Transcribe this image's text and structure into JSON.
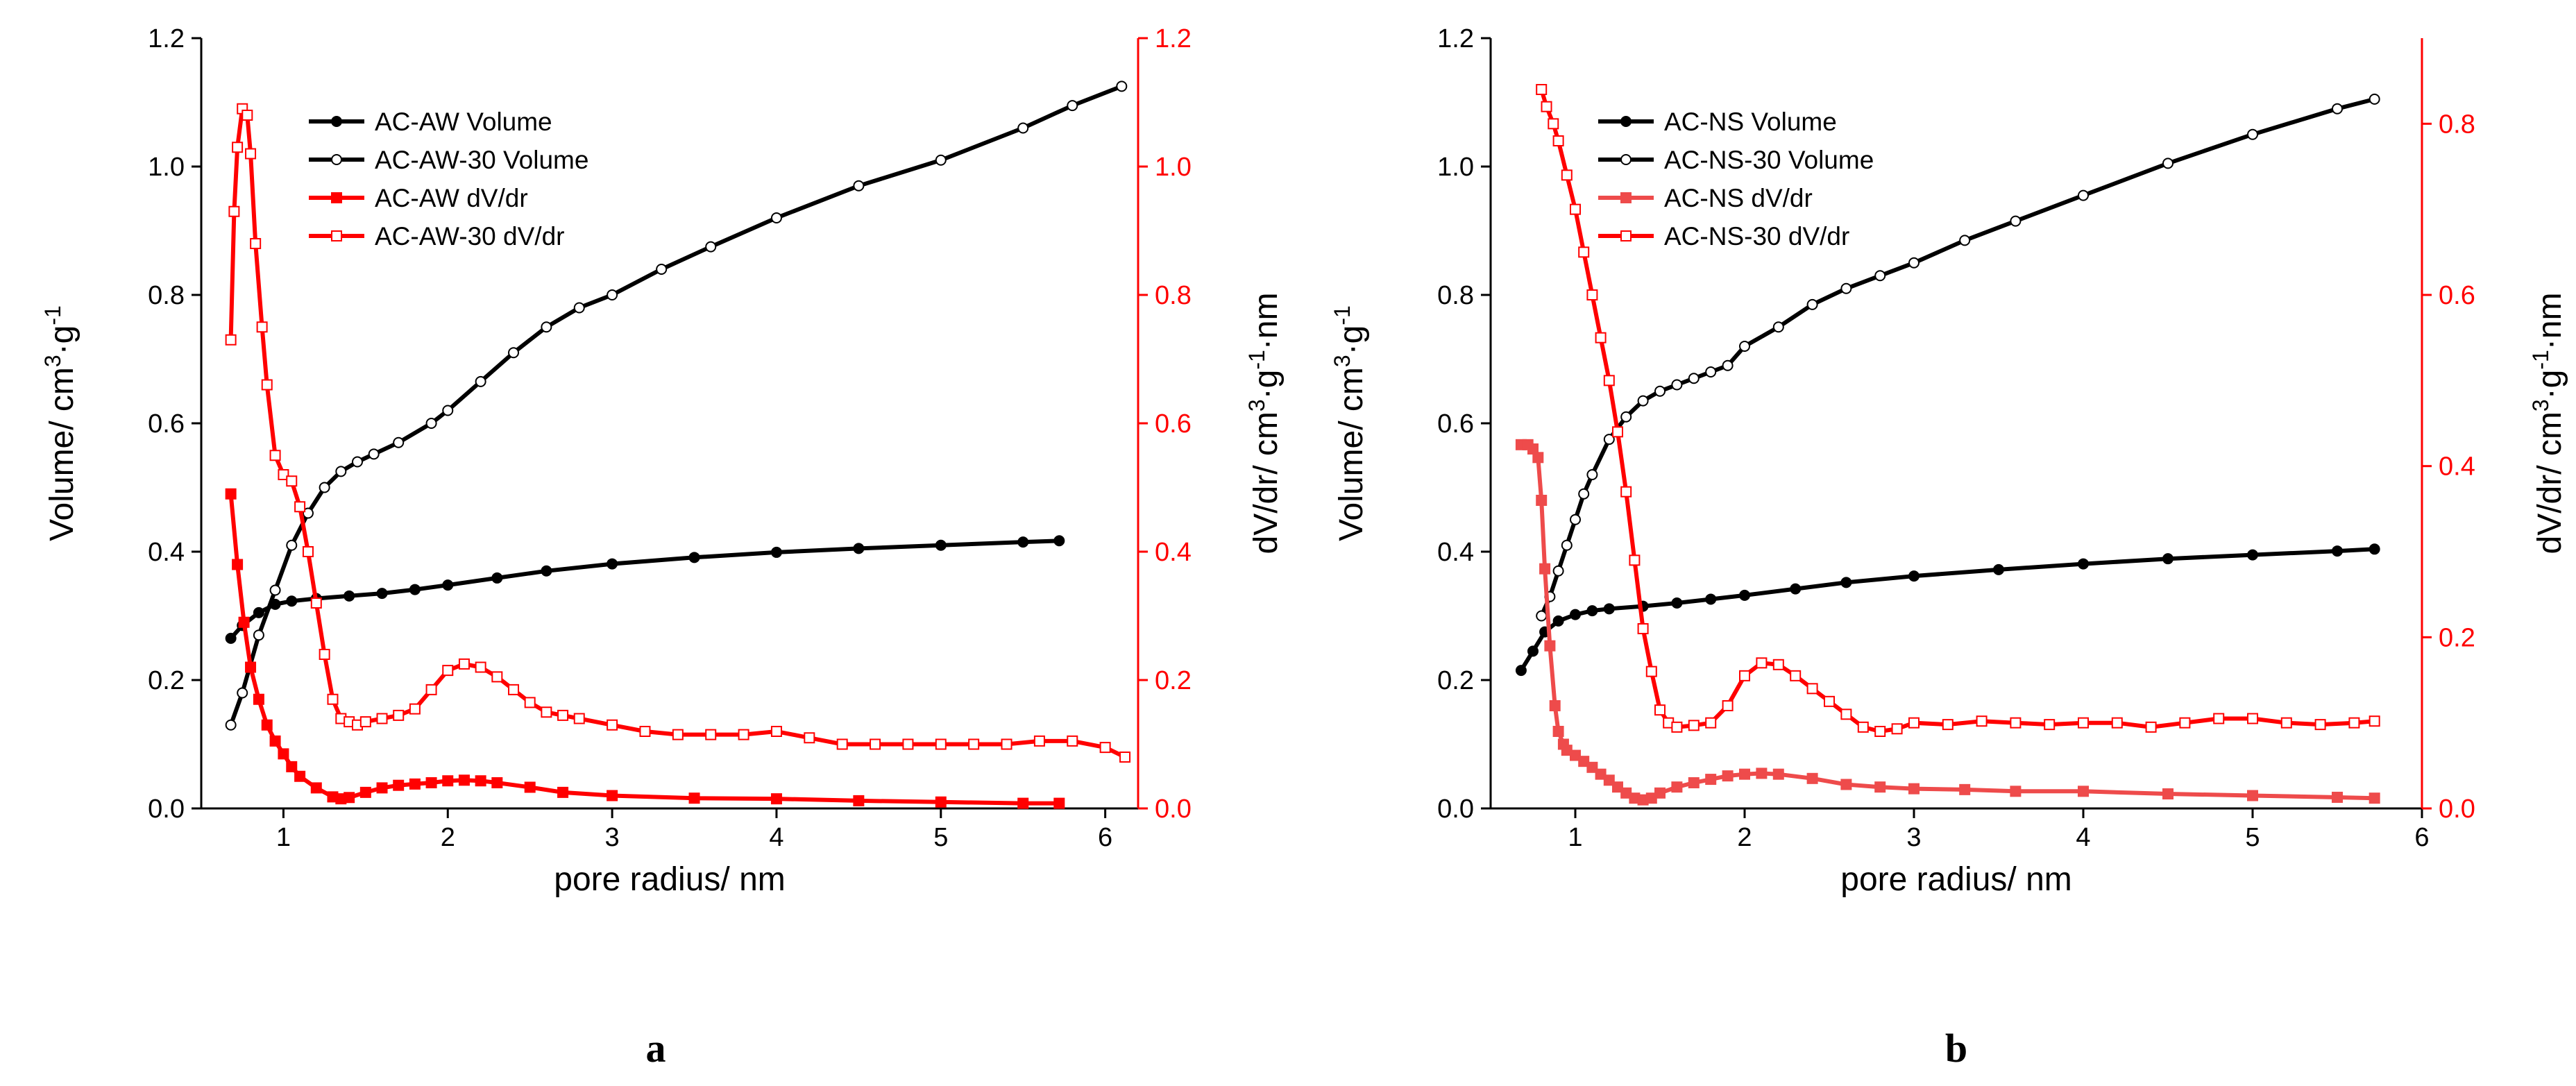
{
  "colors": {
    "volume": "#000000",
    "dvdr": "#ff0000",
    "dvdr_light": "#ee4b4b",
    "axis": "#000000"
  },
  "chart_data": [
    {
      "type": "line",
      "panel_label": "a",
      "xlabel": "pore radius/ nm",
      "ylabel_left": {
        "main": "Volume/ cm",
        "sup1": "3",
        "mid": "·g",
        "sup2": "-1",
        "tail": ""
      },
      "ylabel_right": {
        "main": "dV/dr/ cm",
        "sup1": "3",
        "mid": "·g",
        "sup2": "-1",
        "tail": "·nm"
      },
      "xlim": [
        0.5,
        6.2
      ],
      "ylim_left": [
        0,
        1.2
      ],
      "ylim_right": [
        0,
        1.2
      ],
      "xticks": [
        1,
        2,
        3,
        4,
        5,
        6
      ],
      "xtick_labels": [
        "1",
        "2",
        "3",
        "4",
        "5",
        "6"
      ],
      "yticks_left": [
        0,
        0.2,
        0.4,
        0.6,
        0.8,
        1.0,
        1.2
      ],
      "ytick_labels_left": [
        "0.0",
        "0.2",
        "0.4",
        "0.6",
        "0.8",
        "1.0",
        "1.2"
      ],
      "yticks_right": [
        0,
        0.2,
        0.4,
        0.6,
        0.8,
        1.0,
        1.2
      ],
      "ytick_labels_right": [
        "0.0",
        "0.2",
        "0.4",
        "0.6",
        "0.8",
        "1.0",
        "1.2"
      ],
      "legend_position": "top-left",
      "series": [
        {
          "name": "AC-AW Volume",
          "axis": "left",
          "color": "volume",
          "marker": "filled-circle",
          "x": [
            0.68,
            0.75,
            0.85,
            0.95,
            1.05,
            1.2,
            1.4,
            1.6,
            1.8,
            2.0,
            2.3,
            2.6,
            3.0,
            3.5,
            4.0,
            4.5,
            5.0,
            5.5,
            5.72
          ],
          "y": [
            0.265,
            0.285,
            0.305,
            0.318,
            0.323,
            0.327,
            0.331,
            0.335,
            0.341,
            0.348,
            0.359,
            0.37,
            0.381,
            0.391,
            0.399,
            0.405,
            0.41,
            0.415,
            0.417
          ]
        },
        {
          "name": "AC-AW-30 Volume",
          "axis": "left",
          "color": "volume",
          "marker": "open-circle",
          "x": [
            0.68,
            0.75,
            0.85,
            0.95,
            1.05,
            1.15,
            1.25,
            1.35,
            1.45,
            1.55,
            1.7,
            1.9,
            2.0,
            2.2,
            2.4,
            2.6,
            2.8,
            3.0,
            3.3,
            3.6,
            4.0,
            4.5,
            5.0,
            5.5,
            5.8,
            6.1
          ],
          "y": [
            0.13,
            0.18,
            0.27,
            0.34,
            0.41,
            0.46,
            0.5,
            0.525,
            0.54,
            0.552,
            0.57,
            0.6,
            0.62,
            0.665,
            0.71,
            0.75,
            0.78,
            0.8,
            0.84,
            0.875,
            0.92,
            0.97,
            1.01,
            1.06,
            1.095,
            1.125
          ]
        },
        {
          "name": "AC-AW dV/dr",
          "axis": "right",
          "color": "dvdr",
          "marker": "filled-square",
          "x": [
            0.68,
            0.72,
            0.76,
            0.8,
            0.85,
            0.9,
            0.95,
            1.0,
            1.05,
            1.1,
            1.2,
            1.3,
            1.35,
            1.4,
            1.5,
            1.6,
            1.7,
            1.8,
            1.9,
            2.0,
            2.1,
            2.2,
            2.3,
            2.5,
            2.7,
            3.0,
            3.5,
            4.0,
            4.5,
            5.0,
            5.5,
            5.72
          ],
          "y": [
            0.49,
            0.38,
            0.29,
            0.22,
            0.17,
            0.13,
            0.105,
            0.085,
            0.065,
            0.05,
            0.032,
            0.018,
            0.015,
            0.017,
            0.025,
            0.032,
            0.036,
            0.038,
            0.04,
            0.043,
            0.044,
            0.043,
            0.04,
            0.033,
            0.025,
            0.02,
            0.016,
            0.015,
            0.012,
            0.01,
            0.008,
            0.008
          ]
        },
        {
          "name": "AC-AW-30 dV/dr",
          "axis": "right",
          "color": "dvdr",
          "marker": "open-square",
          "x": [
            0.68,
            0.7,
            0.72,
            0.75,
            0.78,
            0.8,
            0.83,
            0.87,
            0.9,
            0.95,
            1.0,
            1.05,
            1.1,
            1.15,
            1.2,
            1.25,
            1.3,
            1.35,
            1.4,
            1.45,
            1.5,
            1.6,
            1.7,
            1.8,
            1.9,
            2.0,
            2.1,
            2.2,
            2.3,
            2.4,
            2.5,
            2.6,
            2.7,
            2.8,
            3.0,
            3.2,
            3.4,
            3.6,
            3.8,
            4.0,
            4.2,
            4.4,
            4.6,
            4.8,
            5.0,
            5.2,
            5.4,
            5.6,
            5.8,
            6.0,
            6.12
          ],
          "y": [
            0.73,
            0.93,
            1.03,
            1.09,
            1.08,
            1.02,
            0.88,
            0.75,
            0.66,
            0.55,
            0.52,
            0.51,
            0.47,
            0.4,
            0.32,
            0.24,
            0.17,
            0.14,
            0.135,
            0.13,
            0.135,
            0.14,
            0.145,
            0.155,
            0.185,
            0.215,
            0.225,
            0.22,
            0.205,
            0.185,
            0.165,
            0.15,
            0.145,
            0.14,
            0.13,
            0.12,
            0.115,
            0.115,
            0.115,
            0.12,
            0.11,
            0.1,
            0.1,
            0.1,
            0.1,
            0.1,
            0.1,
            0.105,
            0.105,
            0.095,
            0.08
          ]
        }
      ]
    },
    {
      "type": "line",
      "panel_label": "b",
      "xlabel": "pore radius/ nm",
      "ylabel_left": {
        "main": "Volume/ cm",
        "sup1": "3",
        "mid": "·g",
        "sup2": "-1",
        "tail": ""
      },
      "ylabel_right": {
        "main": "dV/dr/ cm",
        "sup1": "3",
        "mid": "·g",
        "sup2": "-1",
        "tail": "·nm"
      },
      "xlim": [
        0.5,
        6.0
      ],
      "ylim_left": [
        0,
        1.2
      ],
      "ylim_right": [
        0,
        0.9
      ],
      "xticks": [
        1,
        2,
        3,
        4,
        5,
        6
      ],
      "xtick_labels": [
        "1",
        "2",
        "3",
        "4",
        "5",
        "6"
      ],
      "yticks_left": [
        0,
        0.2,
        0.4,
        0.6,
        0.8,
        1.0,
        1.2
      ],
      "ytick_labels_left": [
        "0.0",
        "0.2",
        "0.4",
        "0.6",
        "0.8",
        "1.0",
        "1.2"
      ],
      "yticks_right": [
        0,
        0.2,
        0.4,
        0.6,
        0.8
      ],
      "ytick_labels_right": [
        "0.0",
        "0.2",
        "0.4",
        "0.6",
        "0.8"
      ],
      "legend_position": "top-left",
      "series": [
        {
          "name": "AC-NS Volume",
          "axis": "left",
          "color": "volume",
          "marker": "filled-circle",
          "x": [
            0.68,
            0.75,
            0.82,
            0.9,
            1.0,
            1.1,
            1.2,
            1.4,
            1.6,
            1.8,
            2.0,
            2.3,
            2.6,
            3.0,
            3.5,
            4.0,
            4.5,
            5.0,
            5.5,
            5.72
          ],
          "y": [
            0.215,
            0.245,
            0.275,
            0.292,
            0.302,
            0.308,
            0.311,
            0.315,
            0.32,
            0.326,
            0.332,
            0.342,
            0.352,
            0.362,
            0.372,
            0.381,
            0.389,
            0.395,
            0.401,
            0.404
          ]
        },
        {
          "name": "AC-NS-30 Volume",
          "axis": "left",
          "color": "volume",
          "marker": "open-circle",
          "x": [
            0.8,
            0.85,
            0.9,
            0.95,
            1.0,
            1.05,
            1.1,
            1.2,
            1.3,
            1.4,
            1.5,
            1.6,
            1.7,
            1.8,
            1.9,
            2.0,
            2.2,
            2.4,
            2.6,
            2.8,
            3.0,
            3.3,
            3.6,
            4.0,
            4.5,
            5.0,
            5.5,
            5.72
          ],
          "y": [
            0.3,
            0.33,
            0.37,
            0.41,
            0.45,
            0.49,
            0.52,
            0.575,
            0.61,
            0.635,
            0.65,
            0.66,
            0.67,
            0.68,
            0.69,
            0.72,
            0.75,
            0.785,
            0.81,
            0.83,
            0.85,
            0.885,
            0.915,
            0.955,
            1.005,
            1.05,
            1.09,
            1.105
          ]
        },
        {
          "name": "AC-NS dV/dr",
          "axis": "right",
          "color": "dvdr_light",
          "marker": "filled-square",
          "x": [
            0.68,
            0.72,
            0.75,
            0.78,
            0.8,
            0.82,
            0.85,
            0.88,
            0.9,
            0.93,
            0.95,
            1.0,
            1.05,
            1.1,
            1.15,
            1.2,
            1.25,
            1.3,
            1.35,
            1.4,
            1.45,
            1.5,
            1.6,
            1.7,
            1.8,
            1.9,
            2.0,
            2.1,
            2.2,
            2.4,
            2.6,
            2.8,
            3.0,
            3.3,
            3.6,
            4.0,
            4.5,
            5.0,
            5.5,
            5.72
          ],
          "y": [
            0.425,
            0.425,
            0.42,
            0.41,
            0.36,
            0.28,
            0.19,
            0.12,
            0.09,
            0.075,
            0.068,
            0.062,
            0.055,
            0.048,
            0.04,
            0.033,
            0.025,
            0.018,
            0.012,
            0.01,
            0.012,
            0.018,
            0.025,
            0.03,
            0.034,
            0.038,
            0.04,
            0.041,
            0.04,
            0.035,
            0.028,
            0.025,
            0.023,
            0.022,
            0.02,
            0.02,
            0.017,
            0.015,
            0.013,
            0.012
          ]
        },
        {
          "name": "AC-NS-30 dV/dr",
          "axis": "right",
          "color": "dvdr",
          "marker": "open-square",
          "x": [
            0.8,
            0.83,
            0.87,
            0.9,
            0.95,
            1.0,
            1.05,
            1.1,
            1.15,
            1.2,
            1.25,
            1.3,
            1.35,
            1.4,
            1.45,
            1.5,
            1.55,
            1.6,
            1.7,
            1.8,
            1.9,
            2.0,
            2.1,
            2.2,
            2.3,
            2.4,
            2.5,
            2.6,
            2.7,
            2.8,
            2.9,
            3.0,
            3.2,
            3.4,
            3.6,
            3.8,
            4.0,
            4.2,
            4.4,
            4.6,
            4.8,
            5.0,
            5.2,
            5.4,
            5.6,
            5.72
          ],
          "y": [
            0.84,
            0.82,
            0.8,
            0.78,
            0.74,
            0.7,
            0.65,
            0.6,
            0.55,
            0.5,
            0.44,
            0.37,
            0.29,
            0.21,
            0.16,
            0.115,
            0.1,
            0.095,
            0.097,
            0.1,
            0.12,
            0.155,
            0.17,
            0.168,
            0.155,
            0.14,
            0.125,
            0.11,
            0.095,
            0.09,
            0.093,
            0.1,
            0.098,
            0.102,
            0.1,
            0.098,
            0.1,
            0.1,
            0.095,
            0.1,
            0.105,
            0.105,
            0.1,
            0.098,
            0.1,
            0.102
          ]
        }
      ]
    }
  ]
}
